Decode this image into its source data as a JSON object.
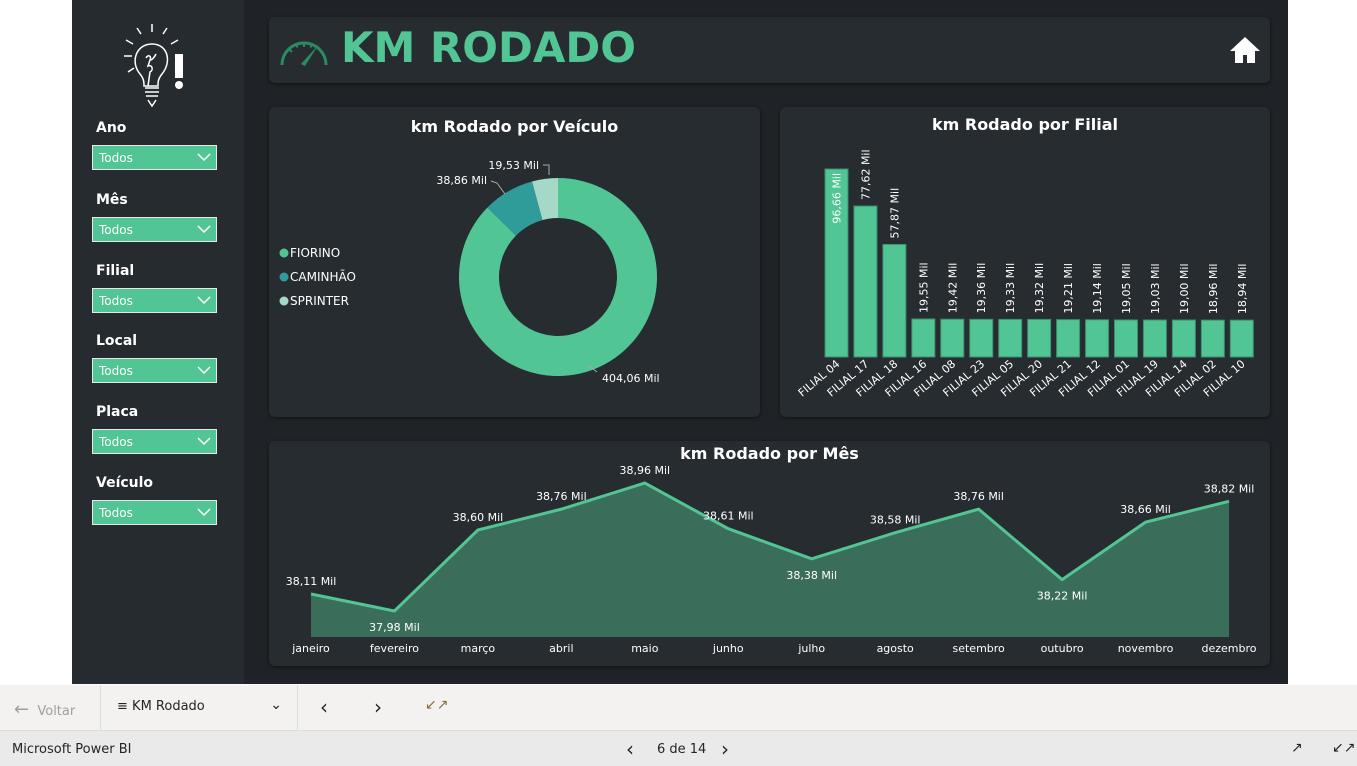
{
  "header": {
    "title": "KM RODADO",
    "title_color": "#52c594",
    "gauge_icon": "speedometer-icon",
    "home_icon": "home-icon"
  },
  "sidebar": {
    "logo_icon": "lightbulb-exclamation-icon",
    "filters": [
      {
        "label": "Ano",
        "value": "Todos"
      },
      {
        "label": "Mês",
        "value": "Todos"
      },
      {
        "label": "Filial",
        "value": "Todos"
      },
      {
        "label": "Local",
        "value": "Todos"
      },
      {
        "label": "Placa",
        "value": "Todos"
      },
      {
        "label": "Veículo",
        "value": "Todos"
      }
    ]
  },
  "chart_data": [
    {
      "type": "pie",
      "variant": "donut",
      "title": "km Rodado por Veículo",
      "legend": "left",
      "categories": [
        "FIORINO",
        "CAMINHÃO",
        "SPRINTER"
      ],
      "values": [
        404.06,
        38.86,
        19.53
      ],
      "labels": [
        "404,06 Mil",
        "38,86 Mil",
        "19,53 Mil"
      ],
      "colors": [
        "#52c594",
        "#2f9c9a",
        "#a6d8c8"
      ]
    },
    {
      "type": "bar",
      "title": "km Rodado por Filial",
      "color": "#52c594",
      "categories": [
        "FILIAL 04",
        "FILIAL 17",
        "FILIAL 18",
        "FILIAL 16",
        "FILIAL 08",
        "FILIAL 23",
        "FILIAL 05",
        "FILIAL 20",
        "FILIAL 21",
        "FILIAL 12",
        "FILIAL 01",
        "FILIAL 19",
        "FILIAL 14",
        "FILIAL 02",
        "FILIAL 10"
      ],
      "values": [
        96.66,
        77.62,
        57.87,
        19.55,
        19.42,
        19.36,
        19.33,
        19.32,
        19.21,
        19.14,
        19.05,
        19.03,
        19.0,
        18.96,
        18.94
      ],
      "labels": [
        "96,66 Mil",
        "77,62 Mil",
        "57,87 Mil",
        "19,55 Mil",
        "19,42 Mil",
        "19,36 Mil",
        "19,33 Mil",
        "19,32 Mil",
        "19,21 Mil",
        "19,14 Mil",
        "19,05 Mil",
        "19,03 Mil",
        "19,00 Mil",
        "18,96 Mil",
        "18,94 Mil"
      ],
      "unit": "Mil"
    },
    {
      "type": "area",
      "title": "km Rodado por Mês",
      "color": "#52c594",
      "categories": [
        "janeiro",
        "fevereiro",
        "março",
        "abril",
        "maio",
        "junho",
        "julho",
        "agosto",
        "setembro",
        "outubro",
        "novembro",
        "dezembro"
      ],
      "values": [
        38.11,
        37.98,
        38.6,
        38.76,
        38.96,
        38.61,
        38.38,
        38.58,
        38.76,
        38.22,
        38.66,
        38.82
      ],
      "labels": [
        "38,11 Mil",
        "37,98 Mil",
        "38,60 Mil",
        "38,76 Mil",
        "38,96 Mil",
        "38,61 Mil",
        "38,38 Mil",
        "38,58 Mil",
        "38,76 Mil",
        "38,22 Mil",
        "38,66 Mil",
        "38,82 Mil"
      ]
    }
  ],
  "bottombar": {
    "back": "Voltar",
    "page": "KM Rodado"
  },
  "statusbar": {
    "app": "Microsoft Power BI",
    "pager": "6 de 14"
  }
}
